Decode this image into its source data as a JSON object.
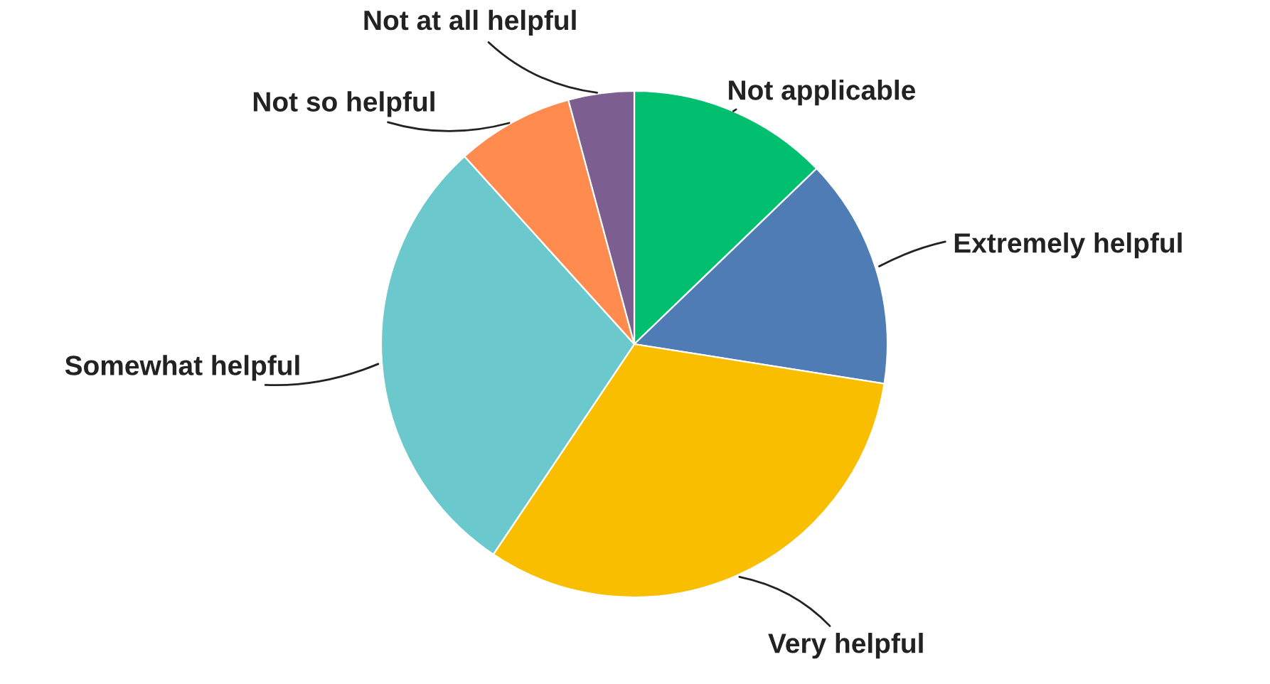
{
  "chart_data": {
    "type": "pie",
    "categories": [
      "Not applicable",
      "Extremely helpful",
      "Very helpful",
      "Somewhat helpful",
      "Not so helpful",
      "Not at all helpful"
    ],
    "values": [
      12.8,
      14.7,
      31.9,
      28.9,
      7.5,
      4.2
    ],
    "colors": [
      "#00bf6f",
      "#507cb6",
      "#f9be00",
      "#6bc8cd",
      "#ff8b4f",
      "#7d5e90"
    ],
    "legend": false
  }
}
